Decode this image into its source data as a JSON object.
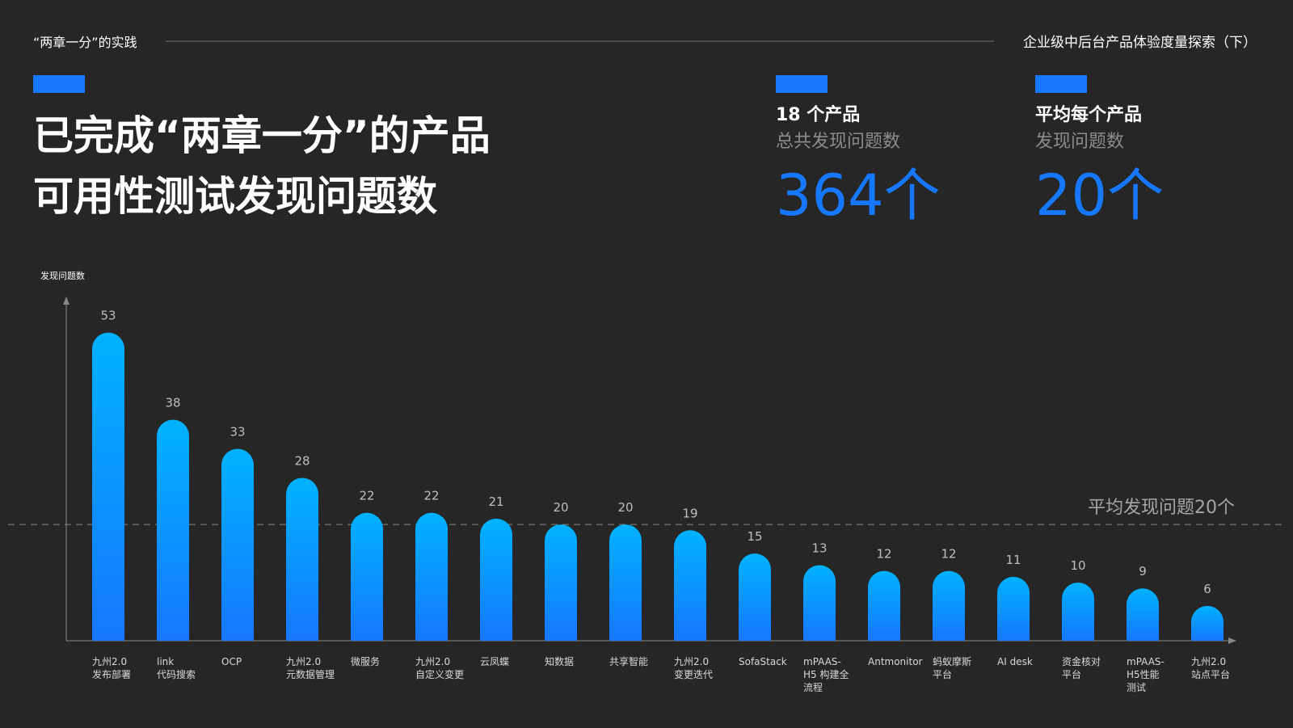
{
  "header": {
    "left": "“两章一分”的实践",
    "right": "企业级中后台产品体验度量探索（下）"
  },
  "title": {
    "lines": [
      "已完成“两章一分”的产品",
      "可用性测试发现问题数"
    ]
  },
  "stats": [
    {
      "heading": "18 个产品",
      "subheading": "总共发现问题数",
      "value": "364个"
    },
    {
      "heading": "平均每个产品",
      "subheading": "发现问题数",
      "value": "20个"
    }
  ],
  "chart_data": {
    "type": "bar",
    "y_label": "发现问题数",
    "categories": [
      [
        "九州2.0",
        "发布部署"
      ],
      [
        "link",
        "代码搜索"
      ],
      [
        "OCP"
      ],
      [
        "九州2.0",
        "元数据管理"
      ],
      [
        "微服务"
      ],
      [
        "九州2.0",
        "自定义变更"
      ],
      [
        "云凤蝶"
      ],
      [
        "知数据"
      ],
      [
        "共享智能"
      ],
      [
        "九州2.0",
        "变更迭代"
      ],
      [
        "SofaStack"
      ],
      [
        "mPAAS-",
        "H5 构建全",
        "流程"
      ],
      [
        "Antmonitor"
      ],
      [
        "蚂蚁摩斯",
        "平台"
      ],
      [
        "AI desk"
      ],
      [
        "资金核对",
        "平台"
      ],
      [
        "mPAAS-",
        "H5性能",
        "测试"
      ],
      [
        "九州2.0",
        "站点平台"
      ]
    ],
    "values": [
      53,
      38,
      33,
      28,
      22,
      22,
      21,
      20,
      20,
      19,
      15,
      13,
      12,
      12,
      11,
      10,
      9,
      6
    ],
    "ylim": [
      0,
      56
    ],
    "reference_line": {
      "value": 20,
      "label": "平均发现问题20个"
    },
    "color_top": "#00b2ff",
    "color_bottom": "#1677ff"
  }
}
